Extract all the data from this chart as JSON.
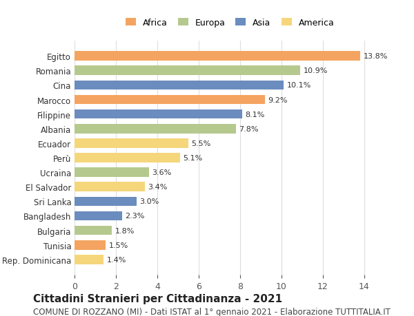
{
  "countries": [
    "Rep. Dominicana",
    "Tunisia",
    "Bulgaria",
    "Bangladesh",
    "Sri Lanka",
    "El Salvador",
    "Ucraina",
    "Perù",
    "Ecuador",
    "Albania",
    "Filippine",
    "Marocco",
    "Cina",
    "Romania",
    "Egitto"
  ],
  "values": [
    1.4,
    1.5,
    1.8,
    2.3,
    3.0,
    3.4,
    3.6,
    5.1,
    5.5,
    7.8,
    8.1,
    9.2,
    10.1,
    10.9,
    13.8
  ],
  "continents": [
    "America",
    "Africa",
    "Europa",
    "Asia",
    "Asia",
    "America",
    "Europa",
    "America",
    "America",
    "Europa",
    "Asia",
    "Africa",
    "Asia",
    "Europa",
    "Africa"
  ],
  "continent_colors": {
    "Africa": "#F4A460",
    "Europa": "#B5C98E",
    "Asia": "#6B8CBE",
    "America": "#F5D67A"
  },
  "legend_order": [
    "Africa",
    "Europa",
    "Asia",
    "America"
  ],
  "xlim": [
    0,
    15
  ],
  "xticks": [
    0,
    2,
    4,
    6,
    8,
    10,
    12,
    14
  ],
  "title": "Cittadini Stranieri per Cittadinanza - 2021",
  "subtitle": "COMUNE DI ROZZANO (MI) - Dati ISTAT al 1° gennaio 2021 - Elaborazione TUTTITALIA.IT",
  "title_fontsize": 11,
  "subtitle_fontsize": 8.5,
  "background_color": "#ffffff",
  "grid_color": "#dddddd",
  "bar_height": 0.65
}
